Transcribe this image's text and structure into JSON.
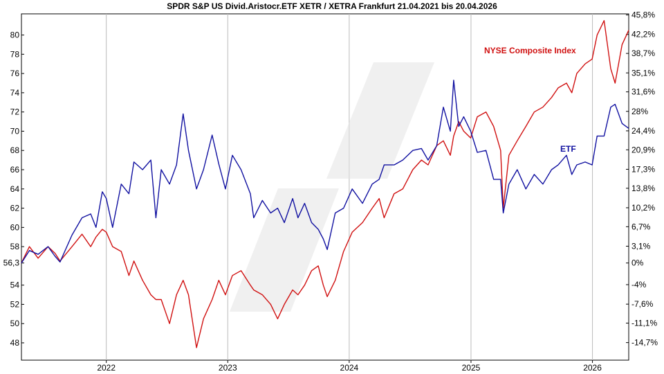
{
  "chart_data": {
    "type": "line",
    "title": "SPDR S&P US Divid.Aristocr.ETF XETR / XETRA Frankfurt 21.04.2021 bis 20.04.2026",
    "xlabel": "",
    "ylabel": "",
    "x_range": [
      "2021-04-21",
      "2026-04-20"
    ],
    "x_tick_labels": [
      "2022",
      "2023",
      "2024",
      "2025",
      "2026"
    ],
    "ylim": [
      46.2,
      82.2
    ],
    "y_left_ticks": [
      "48",
      "50",
      "52",
      "54",
      "56,3",
      "58",
      "60",
      "62",
      "64",
      "66",
      "68",
      "70",
      "72",
      "74",
      "76",
      "78",
      "80"
    ],
    "y_right_ticks": [
      "45,8%",
      "42,2%",
      "38,7%",
      "35,1%",
      "31,6%",
      "28%",
      "24,4%",
      "20,9%",
      "17,3%",
      "13,8%",
      "10,2%",
      "6,7%",
      "3,1%",
      "0%",
      "-4%",
      "-7,6%",
      "-11,1%",
      "-14,7%"
    ],
    "grid": "vertical",
    "legend": "inline labels",
    "colors": {
      "etf": "#1010a0",
      "nyse": "#d01010",
      "grid": "#bbbbbb"
    },
    "series": [
      {
        "name": "ETF",
        "x": [
          "2021-04-21",
          "2021-05-15",
          "2021-06-10",
          "2021-07-10",
          "2021-07-31",
          "2021-08-15",
          "2021-09-20",
          "2021-10-20",
          "2021-11-15",
          "2021-12-01",
          "2021-12-20",
          "2022-01-01",
          "2022-01-20",
          "2022-02-15",
          "2022-03-10",
          "2022-03-25",
          "2022-04-20",
          "2022-05-15",
          "2022-05-30",
          "2022-06-15",
          "2022-07-10",
          "2022-07-31",
          "2022-08-20",
          "2022-09-05",
          "2022-09-29",
          "2022-10-20",
          "2022-11-15",
          "2022-12-05",
          "2022-12-25",
          "2023-01-15",
          "2023-02-10",
          "2023-03-10",
          "2023-03-20",
          "2023-04-15",
          "2023-05-10",
          "2023-05-31",
          "2023-06-20",
          "2023-07-15",
          "2023-07-31",
          "2023-08-20",
          "2023-09-10",
          "2023-09-30",
          "2023-10-15",
          "2023-10-27",
          "2023-11-20",
          "2023-12-15",
          "2024-01-10",
          "2024-02-10",
          "2024-03-10",
          "2024-03-31",
          "2024-04-15",
          "2024-05-15",
          "2024-06-10",
          "2024-07-10",
          "2024-08-05",
          "2024-08-25",
          "2024-09-20",
          "2024-10-10",
          "2024-10-31",
          "2024-11-10",
          "2024-11-25",
          "2024-12-10",
          "2024-12-31",
          "2025-01-20",
          "2025-02-15",
          "2025-03-10",
          "2025-03-31",
          "2025-04-08",
          "2025-04-25",
          "2025-05-20",
          "2025-06-15",
          "2025-07-10",
          "2025-08-05",
          "2025-08-31",
          "2025-09-20",
          "2025-10-15",
          "2025-10-31",
          "2025-11-15",
          "2025-12-10",
          "2025-12-31",
          "2026-01-15",
          "2026-02-05",
          "2026-02-25",
          "2026-03-10",
          "2026-03-31",
          "2026-04-20"
        ],
        "values": [
          56.3,
          57.6,
          57.2,
          58.0,
          57.0,
          56.4,
          59.2,
          61.0,
          61.4,
          60.0,
          63.7,
          63.0,
          60.0,
          64.5,
          63.5,
          66.8,
          66.0,
          67.0,
          61.0,
          66.0,
          64.5,
          66.5,
          71.8,
          68.0,
          64.0,
          66.0,
          69.6,
          66.6,
          64.0,
          67.5,
          66.0,
          63.5,
          61.0,
          62.8,
          61.5,
          62.0,
          60.5,
          63.0,
          61.0,
          62.5,
          60.5,
          59.8,
          58.8,
          57.7,
          61.5,
          62.0,
          64.0,
          62.5,
          64.5,
          65.0,
          66.5,
          66.5,
          67.0,
          68.0,
          68.2,
          67.0,
          68.5,
          72.5,
          70.0,
          75.3,
          70.5,
          71.5,
          70.0,
          67.8,
          68.0,
          65.0,
          65.0,
          61.5,
          64.5,
          66.0,
          64.0,
          65.5,
          64.5,
          66.0,
          66.5,
          67.5,
          65.5,
          66.5,
          66.8,
          66.5,
          69.5,
          69.5,
          72.5,
          72.8,
          70.8,
          70.3
        ]
      },
      {
        "name": "NYSE Composite Index",
        "x": [
          "2021-04-21",
          "2021-05-15",
          "2021-06-10",
          "2021-07-10",
          "2021-07-31",
          "2021-08-15",
          "2021-09-20",
          "2021-10-20",
          "2021-11-15",
          "2021-12-01",
          "2021-12-20",
          "2022-01-01",
          "2022-01-20",
          "2022-02-15",
          "2022-03-10",
          "2022-03-25",
          "2022-04-20",
          "2022-05-15",
          "2022-05-30",
          "2022-06-15",
          "2022-07-10",
          "2022-07-31",
          "2022-08-20",
          "2022-09-05",
          "2022-09-29",
          "2022-10-20",
          "2022-11-15",
          "2022-12-05",
          "2022-12-25",
          "2023-01-15",
          "2023-02-10",
          "2023-03-10",
          "2023-03-20",
          "2023-04-15",
          "2023-05-10",
          "2023-05-31",
          "2023-06-20",
          "2023-07-15",
          "2023-07-31",
          "2023-08-20",
          "2023-09-10",
          "2023-09-30",
          "2023-10-15",
          "2023-10-27",
          "2023-11-20",
          "2023-12-15",
          "2024-01-10",
          "2024-02-10",
          "2024-03-10",
          "2024-03-31",
          "2024-04-15",
          "2024-05-15",
          "2024-06-10",
          "2024-07-10",
          "2024-08-05",
          "2024-08-25",
          "2024-09-20",
          "2024-10-10",
          "2024-10-31",
          "2024-11-10",
          "2024-11-25",
          "2024-12-10",
          "2024-12-31",
          "2025-01-20",
          "2025-02-15",
          "2025-03-10",
          "2025-03-31",
          "2025-04-08",
          "2025-04-25",
          "2025-05-20",
          "2025-06-15",
          "2025-07-10",
          "2025-08-05",
          "2025-08-31",
          "2025-09-20",
          "2025-10-15",
          "2025-10-31",
          "2025-11-15",
          "2025-12-10",
          "2025-12-31",
          "2026-01-15",
          "2026-02-05",
          "2026-02-25",
          "2026-03-10",
          "2026-03-31",
          "2026-04-20"
        ],
        "values": [
          56.3,
          58.0,
          56.8,
          58.0,
          57.3,
          56.5,
          58.0,
          59.3,
          58.0,
          59.0,
          59.8,
          59.5,
          58.0,
          57.5,
          55.0,
          56.5,
          54.5,
          53.0,
          52.5,
          52.5,
          50.0,
          53.0,
          54.5,
          53.0,
          47.5,
          50.5,
          52.5,
          54.5,
          53.0,
          55.0,
          55.5,
          54.0,
          53.5,
          53.0,
          52.0,
          50.5,
          52.0,
          53.5,
          53.0,
          54.0,
          55.5,
          56.0,
          54.0,
          52.8,
          54.5,
          57.5,
          59.5,
          60.5,
          62.0,
          63.0,
          61.0,
          63.5,
          64.0,
          66.0,
          67.0,
          66.5,
          68.5,
          69.0,
          67.5,
          69.5,
          71.0,
          70.0,
          69.3,
          71.5,
          72.0,
          70.5,
          68.0,
          62.0,
          67.5,
          69.0,
          70.5,
          72.0,
          72.5,
          73.5,
          74.5,
          75.0,
          74.0,
          76.0,
          77.0,
          77.5,
          80.0,
          81.5,
          76.5,
          75.0,
          79.0,
          80.5
        ]
      }
    ]
  },
  "labels": {
    "title": "SPDR S&P US Divid.Aristocr.ETF XETR / XETRA Frankfurt 21.04.2021 bis 20.04.2026",
    "nyse_label": "NYSE Composite Index",
    "etf_label": "ETF"
  }
}
